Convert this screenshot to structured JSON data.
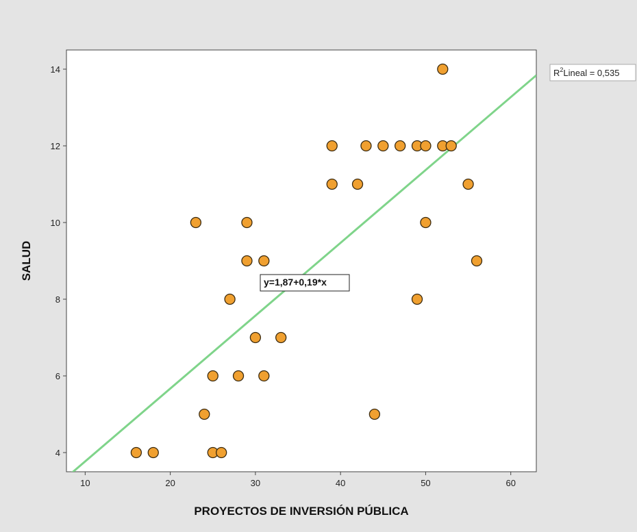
{
  "chart_data": {
    "type": "scatter",
    "title": "",
    "xlabel": "PROYECTOS DE INVERSIÓN PÚBLICA",
    "ylabel": "SALUD",
    "xlim": [
      7.8,
      63
    ],
    "ylim": [
      3.5,
      14.5
    ],
    "xticks": [
      10,
      20,
      30,
      40,
      50,
      60
    ],
    "yticks": [
      4,
      6,
      8,
      10,
      12,
      14
    ],
    "grid": false,
    "points": [
      {
        "x": 16,
        "y": 4
      },
      {
        "x": 18,
        "y": 4
      },
      {
        "x": 25,
        "y": 4
      },
      {
        "x": 26,
        "y": 4
      },
      {
        "x": 24,
        "y": 5
      },
      {
        "x": 44,
        "y": 5
      },
      {
        "x": 25,
        "y": 6
      },
      {
        "x": 28,
        "y": 6
      },
      {
        "x": 31,
        "y": 6
      },
      {
        "x": 30,
        "y": 7
      },
      {
        "x": 33,
        "y": 7
      },
      {
        "x": 27,
        "y": 8
      },
      {
        "x": 49,
        "y": 8
      },
      {
        "x": 29,
        "y": 9
      },
      {
        "x": 31,
        "y": 9
      },
      {
        "x": 56,
        "y": 9
      },
      {
        "x": 23,
        "y": 10
      },
      {
        "x": 29,
        "y": 10
      },
      {
        "x": 50,
        "y": 10
      },
      {
        "x": 39,
        "y": 11
      },
      {
        "x": 42,
        "y": 11
      },
      {
        "x": 55,
        "y": 11
      },
      {
        "x": 39,
        "y": 12
      },
      {
        "x": 43,
        "y": 12
      },
      {
        "x": 45,
        "y": 12
      },
      {
        "x": 47,
        "y": 12
      },
      {
        "x": 49,
        "y": 12
      },
      {
        "x": 50,
        "y": 12
      },
      {
        "x": 52,
        "y": 12
      },
      {
        "x": 53,
        "y": 12
      },
      {
        "x": 52,
        "y": 14
      }
    ],
    "fit_line": {
      "intercept": 1.87,
      "slope": 0.19,
      "color": "#7fd48a"
    },
    "fit_equation": "y=1,87+0,19*x",
    "r2_label": "Lineal = 0,535",
    "r2_prefix": "R",
    "r2_sup": "2",
    "marker_color": "#f0a030",
    "marker_edge": "#3a2a10"
  }
}
